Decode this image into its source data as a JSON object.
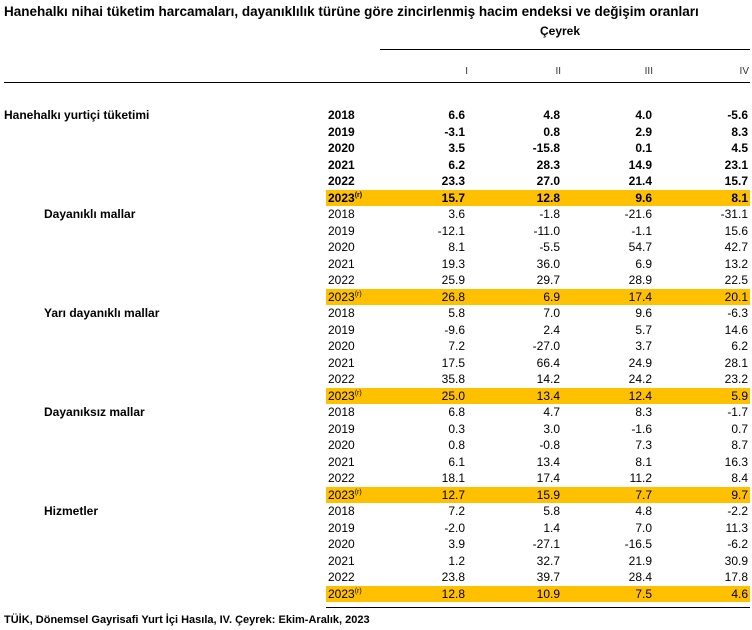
{
  "title": "Hanehalkı nihai tüketim harcamaları, dayanıklılık türüne göre zincirlenmiş hacim endeksi ve değişim oranları",
  "period_header": "Çeyrek",
  "quarters": [
    "I",
    "II",
    "III",
    "IV"
  ],
  "revised_mark": "(r)",
  "sections": [
    {
      "label": "Hanehalkı yurtiçi tüketimi",
      "rows": [
        {
          "year": "2018",
          "values": [
            "6.6",
            "4.8",
            "4.0",
            "-5.6"
          ]
        },
        {
          "year": "2019",
          "values": [
            "-3.1",
            "0.8",
            "2.9",
            "8.3"
          ]
        },
        {
          "year": "2020",
          "values": [
            "3.5",
            "-15.8",
            "0.1",
            "4.5"
          ]
        },
        {
          "year": "2021",
          "values": [
            "6.2",
            "28.3",
            "14.9",
            "23.1"
          ]
        },
        {
          "year": "2022",
          "values": [
            "23.3",
            "27.0",
            "21.4",
            "15.7"
          ]
        },
        {
          "year": "2023",
          "values": [
            "15.7",
            "12.8",
            "9.6",
            "8.1"
          ],
          "revised": true
        }
      ]
    },
    {
      "label": "Dayanıklı mallar",
      "rows": [
        {
          "year": "2018",
          "values": [
            "3.6",
            "-1.8",
            "-21.6",
            "-31.1"
          ]
        },
        {
          "year": "2019",
          "values": [
            "-12.1",
            "-11.0",
            "-1.1",
            "15.6"
          ]
        },
        {
          "year": "2020",
          "values": [
            "8.1",
            "-5.5",
            "54.7",
            "42.7"
          ]
        },
        {
          "year": "2021",
          "values": [
            "19.3",
            "36.0",
            "6.9",
            "13.2"
          ]
        },
        {
          "year": "2022",
          "values": [
            "25.9",
            "29.7",
            "28.9",
            "22.5"
          ]
        },
        {
          "year": "2023",
          "values": [
            "26.8",
            "6.9",
            "17.4",
            "20.1"
          ],
          "revised": true
        }
      ]
    },
    {
      "label": "Yarı dayanıklı mallar",
      "rows": [
        {
          "year": "2018",
          "values": [
            "5.8",
            "7.0",
            "9.6",
            "-6.3"
          ]
        },
        {
          "year": "2019",
          "values": [
            "-9.6",
            "2.4",
            "5.7",
            "14.6"
          ]
        },
        {
          "year": "2020",
          "values": [
            "7.2",
            "-27.0",
            "3.7",
            "6.2"
          ]
        },
        {
          "year": "2021",
          "values": [
            "17.5",
            "66.4",
            "24.9",
            "28.1"
          ]
        },
        {
          "year": "2022",
          "values": [
            "35.8",
            "14.2",
            "24.2",
            "23.2"
          ]
        },
        {
          "year": "2023",
          "values": [
            "25.0",
            "13.4",
            "12.4",
            "5.9"
          ],
          "revised": true
        }
      ]
    },
    {
      "label": "Dayanıksız mallar",
      "rows": [
        {
          "year": "2018",
          "values": [
            "6.8",
            "4.7",
            "8.3",
            "-1.7"
          ]
        },
        {
          "year": "2019",
          "values": [
            "0.3",
            "3.0",
            "-1.6",
            "0.7"
          ]
        },
        {
          "year": "2020",
          "values": [
            "0.8",
            "-0.8",
            "7.3",
            "8.7"
          ]
        },
        {
          "year": "2021",
          "values": [
            "6.1",
            "13.4",
            "8.1",
            "16.3"
          ]
        },
        {
          "year": "2022",
          "values": [
            "18.1",
            "17.4",
            "11.2",
            "8.4"
          ]
        },
        {
          "year": "2023",
          "values": [
            "12.7",
            "15.9",
            "7.7",
            "9.7"
          ],
          "revised": true
        }
      ]
    },
    {
      "label": "Hizmetler",
      "rows": [
        {
          "year": "2018",
          "values": [
            "7.2",
            "5.8",
            "4.8",
            "-2.2"
          ]
        },
        {
          "year": "2019",
          "values": [
            "-2.0",
            "1.4",
            "7.0",
            "11.3"
          ]
        },
        {
          "year": "2020",
          "values": [
            "3.9",
            "-27.1",
            "-16.5",
            "-6.2"
          ]
        },
        {
          "year": "2021",
          "values": [
            "1.2",
            "32.7",
            "21.9",
            "30.9"
          ]
        },
        {
          "year": "2022",
          "values": [
            "23.8",
            "39.7",
            "28.4",
            "17.8"
          ]
        },
        {
          "year": "2023",
          "values": [
            "12.8",
            "10.9",
            "7.5",
            "4.6"
          ],
          "revised": true
        }
      ]
    }
  ],
  "highlight_color": "#FFC000",
  "footer": "TÜİK, Dönemsel Gayrisafi Yurt İçi Hasıla, IV. Çeyrek: Ekim-Aralık, 2023"
}
